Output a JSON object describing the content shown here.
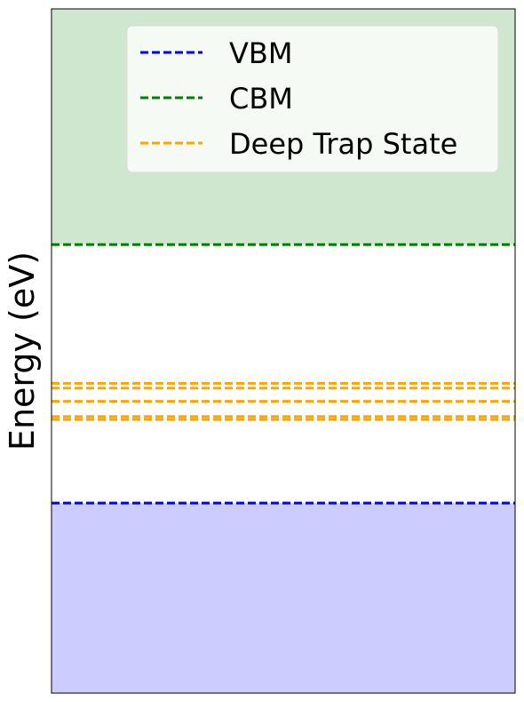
{
  "chart_data": {
    "type": "line",
    "title": "",
    "xlabel": "",
    "ylabel": "Energy (eV)",
    "ylim": [
      -1.0,
      2.6
    ],
    "xticks": "none",
    "yticks": "none",
    "grid": false,
    "legend_position": "top-right",
    "bands": [
      {
        "name": "valence",
        "from": -1.0,
        "to": 0.0,
        "color": "#ccccff"
      },
      {
        "name": "conduction",
        "from": 1.36,
        "to": 2.6,
        "color": "#cfe6cf"
      }
    ],
    "series": [
      {
        "name": "VBM",
        "values": [
          0.0
        ],
        "color": "#0000ff",
        "dash": "dashed"
      },
      {
        "name": "CBM",
        "values": [
          1.36
        ],
        "color": "#008000",
        "dash": "dashed"
      },
      {
        "name": "Deep Trap State",
        "values": [
          0.63,
          0.605,
          0.535,
          0.455,
          0.44
        ],
        "color": "#ffa500",
        "dash": "dashed"
      }
    ]
  }
}
